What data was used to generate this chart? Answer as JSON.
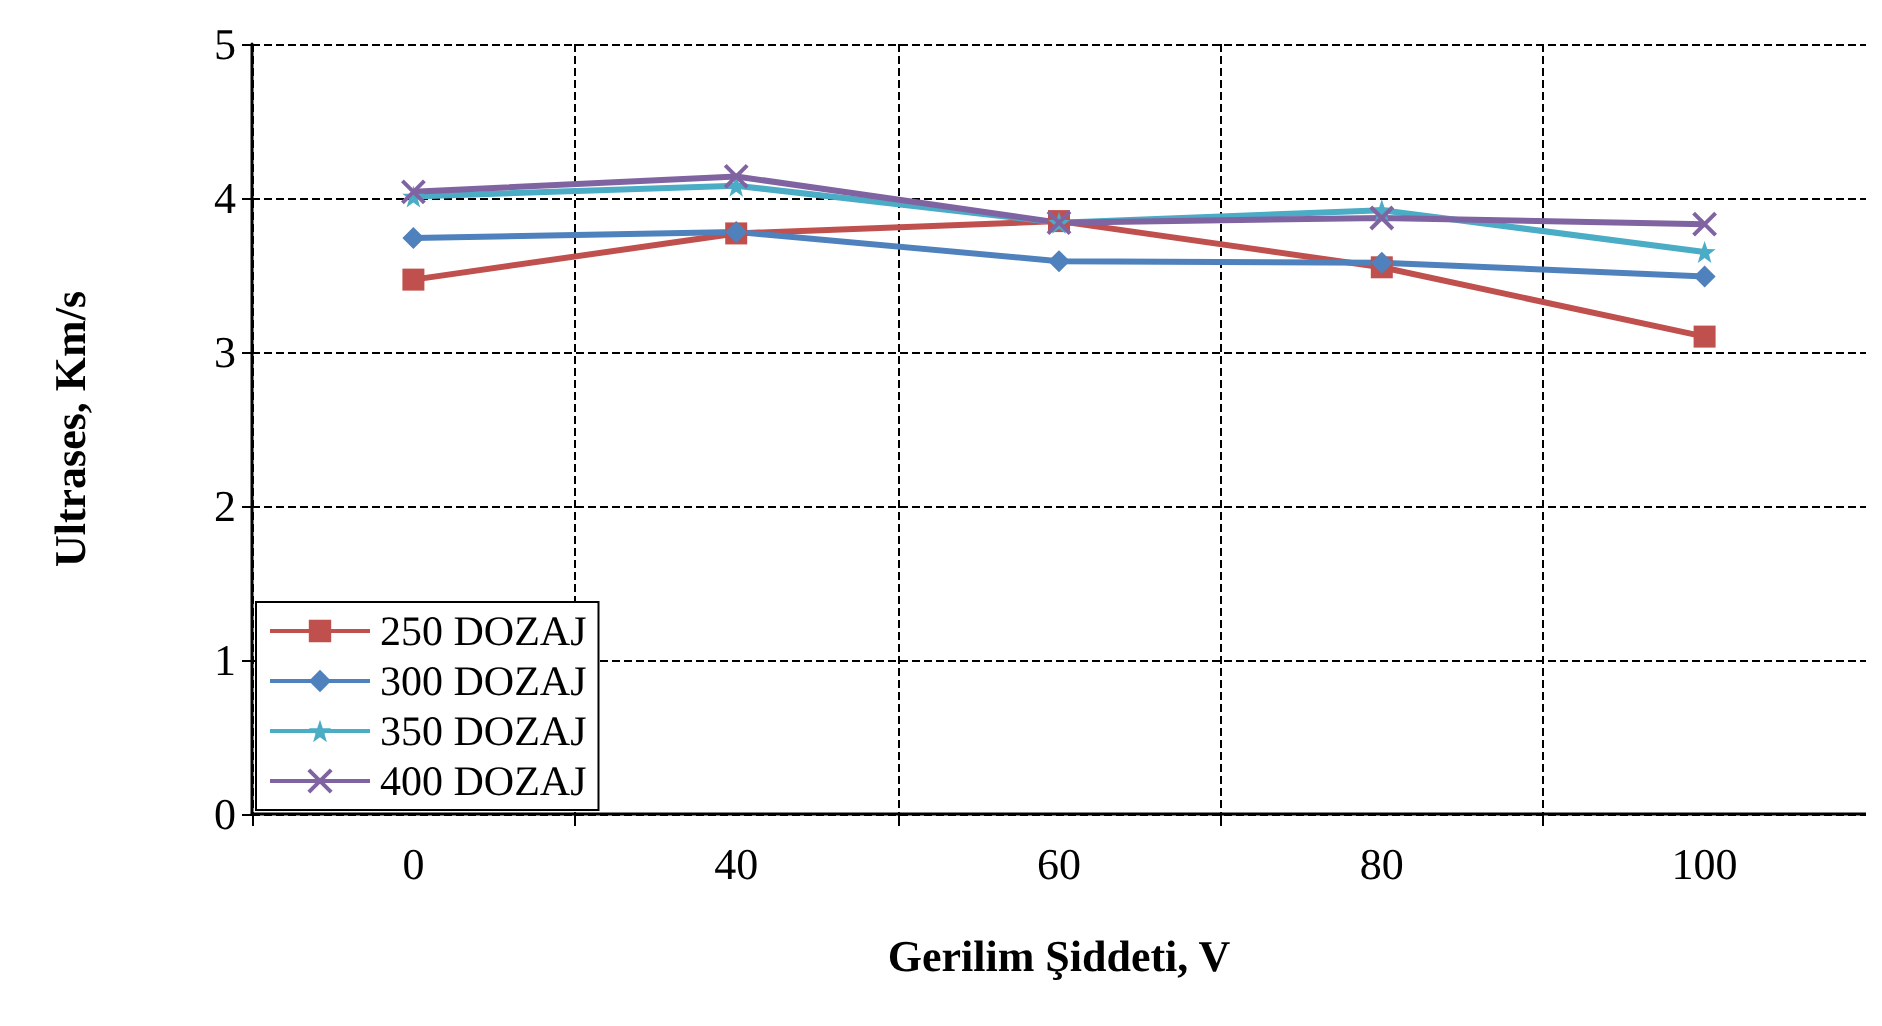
{
  "chart_data": {
    "type": "line",
    "xlabel": "Gerilim Şiddeti, V",
    "ylabel": "Ultrases, Km/s",
    "categories": [
      "0",
      "40",
      "60",
      "80",
      "100"
    ],
    "ylim": [
      0,
      5
    ],
    "yticks": [
      0,
      1,
      2,
      3,
      4,
      5
    ],
    "grid": true,
    "legend": "bottom left",
    "series": [
      {
        "name": "250 DOZAJ",
        "color": "#c0504d",
        "marker": "square",
        "values": [
          3.47,
          3.77,
          3.85,
          3.55,
          3.1
        ]
      },
      {
        "name": "300 DOZAJ",
        "color": "#4f81bd",
        "marker": "diamond",
        "values": [
          3.74,
          3.78,
          3.59,
          3.58,
          3.49
        ]
      },
      {
        "name": "350 DOZAJ",
        "color": "#4bacc6",
        "marker": "star",
        "values": [
          4.01,
          4.08,
          3.84,
          3.92,
          3.65
        ]
      },
      {
        "name": "400 DOZAJ",
        "color": "#8064a2",
        "marker": "cross",
        "values": [
          4.04,
          4.14,
          3.84,
          3.87,
          3.83
        ]
      }
    ]
  }
}
